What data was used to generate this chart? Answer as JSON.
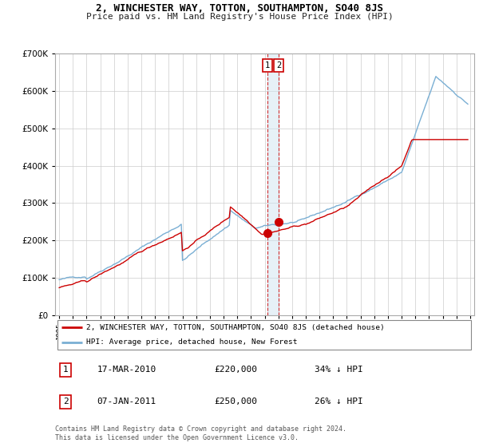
{
  "title": "2, WINCHESTER WAY, TOTTON, SOUTHAMPTON, SO40 8JS",
  "subtitle": "Price paid vs. HM Land Registry's House Price Index (HPI)",
  "legend_property": "2, WINCHESTER WAY, TOTTON, SOUTHAMPTON, SO40 8JS (detached house)",
  "legend_hpi": "HPI: Average price, detached house, New Forest",
  "footer": "Contains HM Land Registry data © Crown copyright and database right 2024.\nThis data is licensed under the Open Government Licence v3.0.",
  "transactions": [
    {
      "id": 1,
      "date": "17-MAR-2010",
      "price": 220000,
      "pct": "34%",
      "dir": "↓",
      "year": 2010.21
    },
    {
      "id": 2,
      "date": "07-JAN-2011",
      "price": 250000,
      "pct": "26%",
      "dir": "↓",
      "year": 2011.03
    }
  ],
  "property_color": "#cc0000",
  "hpi_color": "#7aafd4",
  "marker_color": "#cc0000",
  "background_color": "#ffffff",
  "grid_color": "#cccccc",
  "ylim": [
    0,
    700000
  ],
  "xlim_start": 1994.7,
  "xlim_end": 2025.3
}
